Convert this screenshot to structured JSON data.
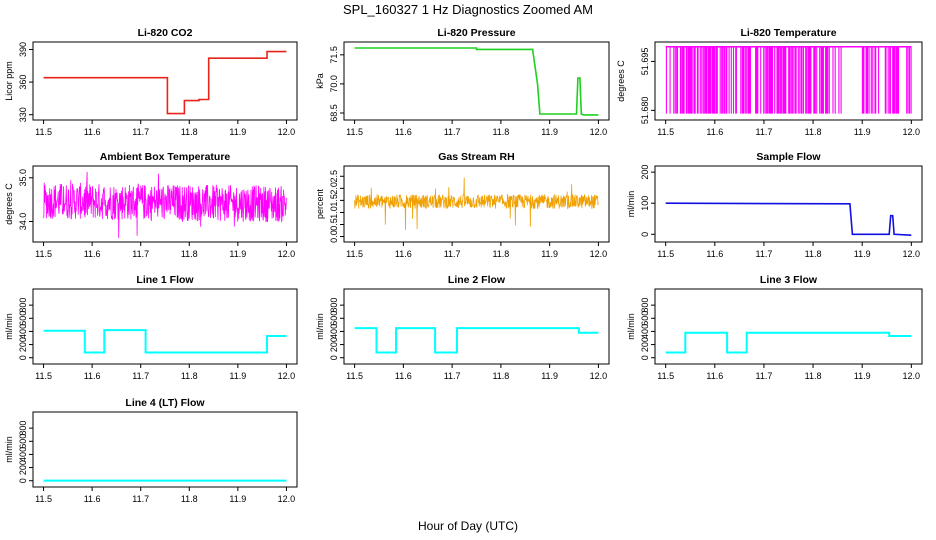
{
  "figure": {
    "title": "SPL_160327  1 Hz Diagnostics Zoomed AM",
    "xlabel": "Hour of Day (UTC)"
  },
  "chart_data": [
    {
      "id": "co2",
      "type": "line",
      "title": "Li-820 CO2",
      "ylabel": "Licor ppm",
      "color": "#e8251b",
      "xlim": [
        11.5,
        12.0
      ],
      "ylim": [
        328,
        394
      ],
      "xticks": [
        11.5,
        11.6,
        11.7,
        11.8,
        11.9,
        12.0
      ],
      "xtick_labels": [
        "11.5",
        "11.6",
        "11.7",
        "11.8",
        "11.9",
        "12.0"
      ],
      "yticks": [
        330,
        360,
        390
      ],
      "ytick_labels": [
        "330",
        "360",
        "390"
      ],
      "series": [
        {
          "x": [
            11.5,
            11.755,
            11.755,
            11.79,
            11.79,
            11.82,
            11.82,
            11.84,
            11.84,
            11.96,
            11.96,
            12.0
          ],
          "y": [
            364,
            364,
            331,
            331,
            343,
            343,
            344,
            344,
            382,
            382,
            388,
            388
          ]
        }
      ]
    },
    {
      "id": "pressure",
      "type": "line",
      "title": "Li-820 Pressure",
      "ylabel": "kPa",
      "color": "#1fd01f",
      "xlim": [
        11.5,
        12.0
      ],
      "ylim": [
        68.3,
        72.0
      ],
      "xticks": [
        11.5,
        11.6,
        11.7,
        11.8,
        11.9,
        12.0
      ],
      "xtick_labels": [
        "11.5",
        "11.6",
        "11.7",
        "11.8",
        "11.9",
        "12.0"
      ],
      "yticks": [
        68.5,
        70.0,
        71.5
      ],
      "ytick_labels": [
        "68.5",
        "70.0",
        "71.5"
      ],
      "series": [
        {
          "x": [
            11.5,
            11.75,
            11.75,
            11.865,
            11.875,
            11.88,
            11.955,
            11.958,
            11.962,
            11.965,
            11.97,
            12.0
          ],
          "y": [
            71.85,
            71.85,
            71.78,
            71.78,
            70.0,
            68.45,
            68.45,
            70.3,
            70.3,
            68.45,
            68.4,
            68.4
          ]
        }
      ]
    },
    {
      "id": "licor_temp",
      "type": "line",
      "title": "Li-820 Temperature",
      "ylabel": "degrees C",
      "color": "#ff00ff",
      "xlim": [
        11.5,
        12.0
      ],
      "ylim": [
        51.678,
        51.7
      ],
      "xticks": [
        11.5,
        11.6,
        11.7,
        11.8,
        11.9,
        12.0
      ],
      "xtick_labels": [
        "11.5",
        "11.6",
        "11.7",
        "11.8",
        "11.9",
        "12.0"
      ],
      "yticks": [
        51.68,
        51.695
      ],
      "ytick_labels": [
        "51.680",
        "51.695"
      ],
      "series": [
        {
          "x": [
            11.5,
            12.0
          ],
          "y": [
            51.6995,
            51.6995
          ]
        }
      ]
    },
    {
      "id": "box_temp",
      "type": "line",
      "title": "Ambient Box Temperature",
      "ylabel": "degrees C",
      "color": "#ff00ff",
      "xlim": [
        11.5,
        12.0
      ],
      "ylim": [
        33.6,
        35.2
      ],
      "xticks": [
        11.5,
        11.6,
        11.7,
        11.8,
        11.9,
        12.0
      ],
      "xtick_labels": [
        "11.5",
        "11.6",
        "11.7",
        "11.8",
        "11.9",
        "12.0"
      ],
      "yticks": [
        34.0,
        35.0
      ],
      "ytick_labels": [
        "34.0",
        "35.0"
      ],
      "series": [
        {
          "x": [
            11.5,
            12.0
          ],
          "y": [
            34.4,
            34.4
          ]
        }
      ]
    },
    {
      "id": "rh",
      "type": "line",
      "title": "Gas Stream RH",
      "ylabel": "percent",
      "color": "#f0a000",
      "xlim": [
        11.5,
        12.0
      ],
      "ylim": [
        -0.1,
        2.8
      ],
      "xticks": [
        11.5,
        11.6,
        11.7,
        11.8,
        11.9,
        12.0
      ],
      "xtick_labels": [
        "11.5",
        "11.6",
        "11.7",
        "11.8",
        "11.9",
        "12.0"
      ],
      "yticks": [
        0.0,
        0.5,
        1.0,
        1.5,
        2.0,
        2.5
      ],
      "ytick_labels": [
        "0.0",
        "0.5",
        "1.0",
        "1.5",
        "2.0",
        "2.5"
      ],
      "series": [
        {
          "x": [
            11.5,
            12.0
          ],
          "y": [
            1.45,
            1.45
          ]
        }
      ]
    },
    {
      "id": "sample_flow",
      "type": "line",
      "title": "Sample Flow",
      "ylabel": "ml/min",
      "color": "#1010e0",
      "xlim": [
        11.5,
        12.0
      ],
      "ylim": [
        -15,
        210
      ],
      "xticks": [
        11.5,
        11.6,
        11.7,
        11.8,
        11.9,
        12.0
      ],
      "xtick_labels": [
        "11.5",
        "11.6",
        "11.7",
        "11.8",
        "11.9",
        "12.0"
      ],
      "yticks": [
        0,
        100,
        200
      ],
      "ytick_labels": [
        "0",
        "100",
        "200"
      ],
      "series": [
        {
          "x": [
            11.5,
            11.875,
            11.88,
            11.955,
            11.958,
            11.962,
            11.965,
            12.0
          ],
          "y": [
            100,
            98,
            0,
            0,
            60,
            60,
            0,
            -3
          ]
        }
      ]
    },
    {
      "id": "line1",
      "type": "line",
      "title": "Line 1 Flow",
      "ylabel": "ml/min",
      "color": "#00ffff",
      "xlim": [
        11.5,
        12.0
      ],
      "ylim": [
        -50,
        1000
      ],
      "xticks": [
        11.5,
        11.6,
        11.7,
        11.8,
        11.9,
        12.0
      ],
      "xtick_labels": [
        "11.5",
        "11.6",
        "11.7",
        "11.8",
        "11.9",
        "12.0"
      ],
      "yticks": [
        0,
        200,
        400,
        600,
        800
      ],
      "ytick_labels": [
        "0",
        "200",
        "400",
        "600",
        "800"
      ],
      "series": [
        {
          "x": [
            11.5,
            11.585,
            11.585,
            11.625,
            11.625,
            11.71,
            11.71,
            11.96,
            11.96,
            12.0
          ],
          "y": [
            410,
            410,
            80,
            80,
            420,
            420,
            80,
            80,
            330,
            330
          ]
        }
      ]
    },
    {
      "id": "line2",
      "type": "line",
      "title": "Line 2 Flow",
      "ylabel": "ml/min",
      "color": "#00ffff",
      "xlim": [
        11.5,
        12.0
      ],
      "ylim": [
        -50,
        1000
      ],
      "xticks": [
        11.5,
        11.6,
        11.7,
        11.8,
        11.9,
        12.0
      ],
      "xtick_labels": [
        "11.5",
        "11.6",
        "11.7",
        "11.8",
        "11.9",
        "12.0"
      ],
      "yticks": [
        0,
        200,
        400,
        600,
        800
      ],
      "ytick_labels": [
        "0",
        "200",
        "400",
        "600",
        "800"
      ],
      "series": [
        {
          "x": [
            11.5,
            11.545,
            11.545,
            11.585,
            11.585,
            11.665,
            11.665,
            11.71,
            11.71,
            11.96,
            11.96,
            12.0
          ],
          "y": [
            450,
            450,
            80,
            80,
            450,
            450,
            80,
            80,
            450,
            450,
            380,
            380
          ]
        }
      ]
    },
    {
      "id": "line3",
      "type": "line",
      "title": "Line 3 Flow",
      "ylabel": "ml/min",
      "color": "#00ffff",
      "xlim": [
        11.5,
        12.0
      ],
      "ylim": [
        -50,
        1000
      ],
      "xticks": [
        11.5,
        11.6,
        11.7,
        11.8,
        11.9,
        12.0
      ],
      "xtick_labels": [
        "11.5",
        "11.6",
        "11.7",
        "11.8",
        "11.9",
        "12.0"
      ],
      "yticks": [
        0,
        200,
        400,
        600,
        800
      ],
      "ytick_labels": [
        "0",
        "200",
        "400",
        "600",
        "800"
      ],
      "series": [
        {
          "x": [
            11.5,
            11.54,
            11.54,
            11.625,
            11.625,
            11.665,
            11.665,
            11.955,
            11.955,
            12.0
          ],
          "y": [
            80,
            80,
            380,
            380,
            80,
            80,
            380,
            380,
            330,
            330
          ]
        }
      ]
    },
    {
      "id": "line4",
      "type": "line",
      "title": "Line 4 (LT) Flow",
      "ylabel": "ml/min",
      "color": "#00ffff",
      "xlim": [
        11.5,
        12.0
      ],
      "ylim": [
        -50,
        1000
      ],
      "xticks": [
        11.5,
        11.6,
        11.7,
        11.8,
        11.9,
        12.0
      ],
      "xtick_labels": [
        "11.5",
        "11.6",
        "11.7",
        "11.8",
        "11.9",
        "12.0"
      ],
      "yticks": [
        0,
        200,
        400,
        600,
        800
      ],
      "ytick_labels": [
        "0",
        "200",
        "400",
        "600",
        "800"
      ],
      "series": [
        {
          "x": [
            11.5,
            12.0
          ],
          "y": [
            2,
            2
          ]
        }
      ]
    }
  ]
}
